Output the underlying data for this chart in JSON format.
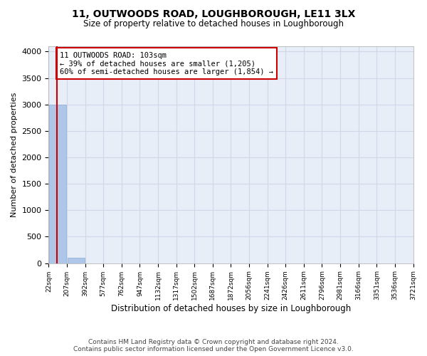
{
  "title": "11, OUTWOODS ROAD, LOUGHBOROUGH, LE11 3LX",
  "subtitle": "Size of property relative to detached houses in Loughborough",
  "xlabel": "Distribution of detached houses by size in Loughborough",
  "ylabel": "Number of detached properties",
  "bin_edges": [
    "22sqm",
    "207sqm",
    "392sqm",
    "577sqm",
    "762sqm",
    "947sqm",
    "1132sqm",
    "1317sqm",
    "1502sqm",
    "1687sqm",
    "1872sqm",
    "2056sqm",
    "2241sqm",
    "2426sqm",
    "2611sqm",
    "2796sqm",
    "2981sqm",
    "3166sqm",
    "3351sqm",
    "3536sqm",
    "3721sqm"
  ],
  "bar_heights": [
    3000,
    100,
    0,
    0,
    0,
    0,
    0,
    0,
    0,
    0,
    0,
    0,
    0,
    0,
    0,
    0,
    0,
    0,
    0,
    0
  ],
  "bar_color": "#aec6e8",
  "bar_edge_color": "#aec6e8",
  "ylim": [
    0,
    4100
  ],
  "yticks": [
    0,
    500,
    1000,
    1500,
    2000,
    2500,
    3000,
    3500,
    4000
  ],
  "annotation_title": "11 OUTWOODS ROAD: 103sqm",
  "annotation_line1": "← 39% of detached houses are smaller (1,205)",
  "annotation_line2": "60% of semi-detached houses are larger (1,854) →",
  "annotation_box_color": "#ffffff",
  "annotation_border_color": "#cc0000",
  "vline_color": "#cc0000",
  "grid_color": "#d0d8e8",
  "bg_color": "#e8eef8",
  "footer_line1": "Contains HM Land Registry data © Crown copyright and database right 2024.",
  "footer_line2": "Contains public sector information licensed under the Open Government Licence v3.0."
}
